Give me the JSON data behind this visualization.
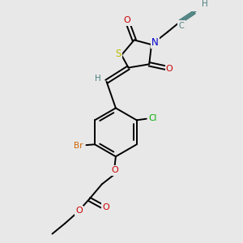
{
  "bg_color": "#e8e8e8",
  "bond_color": "#000000",
  "bond_lw": 1.4,
  "atom_colors": {
    "S": "#bbbb00",
    "N": "#0000cc",
    "O": "#cc0000",
    "Br": "#cc6600",
    "Cl": "#00aa00",
    "H": "#4d8080",
    "C_alkyne": "#4d8080",
    "C": "#000000"
  },
  "font_size": 7.5
}
